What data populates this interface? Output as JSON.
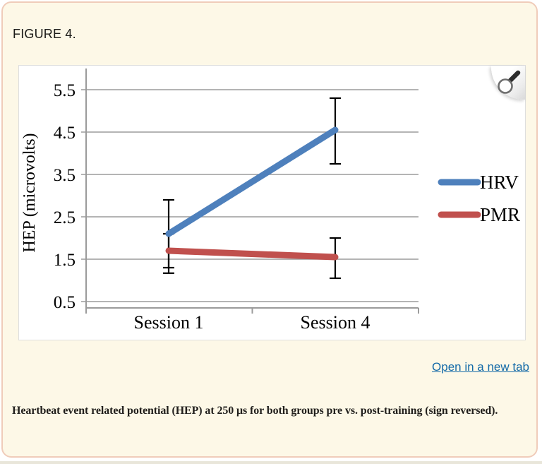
{
  "figure": {
    "label": "FIGURE 4."
  },
  "toolbar": {
    "zoom_button": "magnifier-icon"
  },
  "link": {
    "open_new_tab": "Open in a new tab"
  },
  "caption": {
    "text": "Heartbeat event related potential (HEP) at 250 μs for both groups pre vs. post-training (sign reversed)."
  },
  "chart_data": {
    "type": "line",
    "title": "",
    "categories": [
      "Session 1",
      "Session 4"
    ],
    "series": [
      {
        "name": "HRV",
        "color": "#4e80bc",
        "values": [
          2.1,
          4.55
        ],
        "error_low": [
          1.3,
          3.75
        ],
        "error_high": [
          2.9,
          5.3
        ]
      },
      {
        "name": "PMR",
        "color": "#c0504d",
        "values": [
          1.7,
          1.55
        ],
        "error_low": [
          1.17,
          1.05
        ],
        "error_high": [
          2.1,
          2.0
        ]
      }
    ],
    "xlabel": "",
    "ylabel": "HEP (microvolts)",
    "yticks": [
      0.5,
      1.5,
      2.5,
      3.5,
      4.5,
      5.5
    ],
    "ylim": [
      0.35,
      6.0
    ],
    "grid": true,
    "legend_position": "right",
    "error_bar_color": "#000000",
    "axis_color": "#9b9b9b"
  }
}
